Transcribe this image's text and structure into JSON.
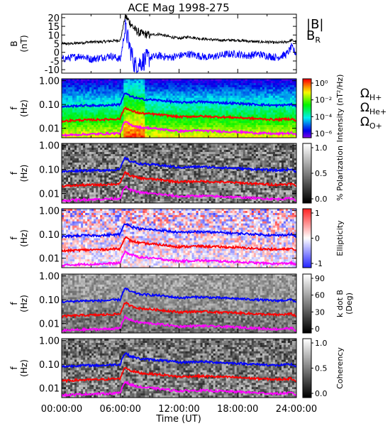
{
  "title": "ACE Mag 1998-275",
  "x_axis": {
    "label": "Time (UT)",
    "ticks": [
      "00:00:00",
      "06:00:00",
      "12:00:00",
      "18:00:00",
      "24:00:00"
    ],
    "tick_hours": [
      0,
      6,
      12,
      18,
      24
    ],
    "range_hours": [
      0,
      24
    ]
  },
  "colors": {
    "B": "#000000",
    "BR": "#0000ff",
    "H": "#0000ff",
    "He": "#ff0000",
    "O": "#ff00ff"
  },
  "legend": {
    "B_abs": "|B|",
    "B_R_main": "B",
    "B_R_sub": "R",
    "H": "H+",
    "He": "He+",
    "O": "O+",
    "omega": "Ω"
  },
  "panels": [
    {
      "id": "B",
      "ylabel_1": "B",
      "ylabel_2": "(nT)",
      "yticks": [
        "20",
        "15",
        "10",
        "5",
        "0",
        "-5",
        "-10"
      ]
    },
    {
      "id": "intensity",
      "ylabel_1": "f",
      "ylabel_2": "(Hz)",
      "yticks": [
        "1.00",
        "0.10",
        "0.01"
      ],
      "colorbar_label": "Intensity (nT²/Hz)",
      "colorbar_ticks": [
        "10⁰",
        "10⁻²",
        "10⁻⁴",
        "10⁻⁶"
      ],
      "colormap": "rainbow"
    },
    {
      "id": "polarization",
      "ylabel_1": "f",
      "ylabel_2": "(Hz)",
      "yticks": [
        "1.00",
        "0.10",
        "0.01"
      ],
      "colorbar_label": "% Polarization",
      "colorbar_ticks": [
        "1.0",
        "0.5",
        "0.0"
      ],
      "colormap": "gray"
    },
    {
      "id": "ellipticity",
      "ylabel_1": "f",
      "ylabel_2": "(Hz)",
      "yticks": [
        "1.00",
        "0.10",
        "0.01"
      ],
      "colorbar_label": "Ellipticity",
      "colorbar_ticks": [
        "1",
        "0",
        "-1"
      ],
      "colormap": "blue-white-red"
    },
    {
      "id": "kdotb",
      "ylabel_1": "f",
      "ylabel_2": "(Hz)",
      "yticks": [
        "1.00",
        "0.10",
        "0.01"
      ],
      "colorbar_label": "k dot B",
      "colorbar_label_2": "(Deg)",
      "colorbar_ticks": [
        "90",
        "60",
        "30",
        "0"
      ],
      "colormap": "gray"
    },
    {
      "id": "coherency",
      "ylabel_1": "f",
      "ylabel_2": "(Hz)",
      "yticks": [
        "1.00",
        "0.10",
        "0.01"
      ],
      "colorbar_label": "Coherency",
      "colorbar_ticks": [
        "1.0",
        "0.5",
        "0.0"
      ],
      "colormap": "gray"
    }
  ],
  "chart_data": {
    "type": "line",
    "title": "ACE Mag 1998-275",
    "xlabel": "Time (UT)",
    "xlim_hours": [
      0,
      24
    ],
    "B_panel": {
      "ylabel": "B (nT)",
      "ylim": [
        -12,
        22
      ],
      "series": [
        {
          "name": "|B|",
          "x": [
            0,
            1,
            2,
            3,
            4,
            5,
            6,
            6.5,
            7,
            7.5,
            8,
            9,
            10,
            11,
            12,
            13,
            14,
            15,
            16,
            17,
            18,
            19,
            20,
            21,
            22,
            23,
            23.5,
            24
          ],
          "values": [
            5,
            5,
            5.5,
            6,
            6,
            6.5,
            7,
            21,
            17,
            13,
            11,
            10,
            10.5,
            9,
            8,
            9,
            8,
            7.5,
            7,
            7,
            7,
            6.5,
            6,
            6,
            5.5,
            6,
            7,
            6
          ]
        },
        {
          "name": "B_R",
          "x": [
            0,
            1,
            2,
            3,
            4,
            5,
            6,
            6.5,
            7,
            7.5,
            8,
            9,
            10,
            11,
            12,
            13,
            14,
            15,
            16,
            17,
            18,
            19,
            20,
            21,
            22,
            23,
            23.5,
            24
          ],
          "values": [
            -4,
            -3,
            -2,
            -4,
            -3,
            -2,
            -4,
            14,
            2,
            -8,
            -6,
            -3,
            -2,
            -3,
            -2,
            -1,
            -2,
            -3,
            -2,
            -1,
            -1,
            -2,
            -1,
            -2,
            -3,
            -1,
            3,
            -1
          ]
        }
      ]
    },
    "spectral_panels": {
      "ylabel": "f (Hz)",
      "yscale": "log",
      "ylim": [
        0.004,
        1.2
      ],
      "gyrofrequency_lines": [
        {
          "name": "Ω H+",
          "x": [
            0,
            2,
            4,
            6,
            6.5,
            7,
            8,
            10,
            12,
            14,
            16,
            18,
            20,
            22,
            23.5,
            24
          ],
          "values": [
            0.08,
            0.09,
            0.09,
            0.1,
            0.3,
            0.22,
            0.17,
            0.15,
            0.12,
            0.13,
            0.12,
            0.11,
            0.1,
            0.09,
            0.1,
            0.08
          ]
        },
        {
          "name": "Ω He+",
          "x": [
            0,
            2,
            4,
            6,
            6.5,
            7,
            8,
            10,
            12,
            14,
            16,
            18,
            20,
            22,
            23.5,
            24
          ],
          "values": [
            0.02,
            0.022,
            0.023,
            0.025,
            0.075,
            0.055,
            0.043,
            0.037,
            0.03,
            0.032,
            0.03,
            0.028,
            0.025,
            0.023,
            0.025,
            0.02
          ]
        },
        {
          "name": "Ω O+",
          "x": [
            0,
            2,
            4,
            6,
            6.5,
            7,
            8,
            10,
            12,
            14,
            16,
            18,
            20,
            22,
            23.5,
            24
          ],
          "values": [
            0.005,
            0.0055,
            0.0058,
            0.0062,
            0.019,
            0.014,
            0.011,
            0.0093,
            0.0075,
            0.008,
            0.0075,
            0.007,
            0.0063,
            0.0058,
            0.0063,
            0.005
          ]
        }
      ]
    }
  }
}
